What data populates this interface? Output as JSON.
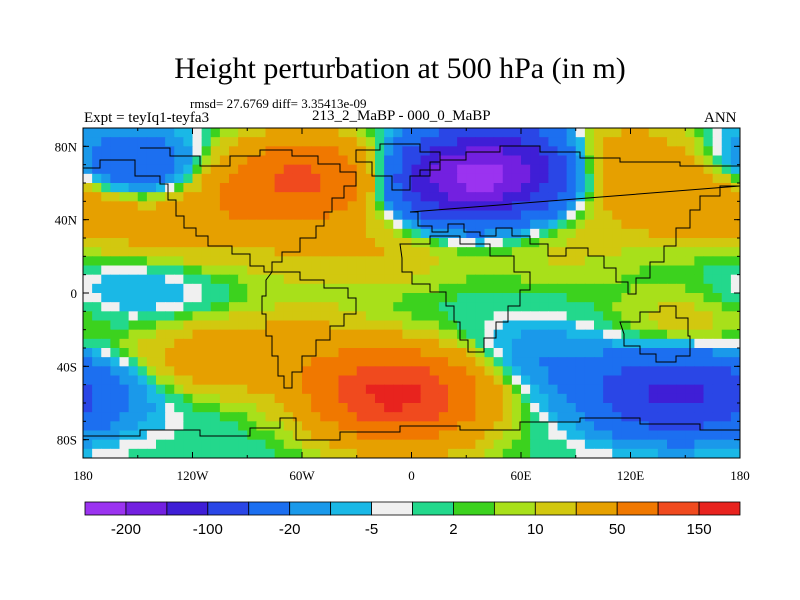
{
  "title": "Height perturbation at 500 hPa (in m)",
  "stats_text": "rmsd= 27.6769 diff= 3.35413e-09",
  "left_label": "Expt = teyIq1-teyfa3",
  "center_label": "213_2_MaBP - 000_0_MaBP",
  "right_label": "ANN",
  "axes": {
    "y_ticks": [
      "80N",
      "40N",
      "0",
      "40S",
      "80S"
    ],
    "x_ticks": [
      "180",
      "120W",
      "60W",
      "0",
      "60E",
      "120E",
      "180"
    ]
  },
  "colorbar": {
    "colors": [
      "#9b33f0",
      "#7320e0",
      "#3f1ed6",
      "#2a46e6",
      "#1c6ff0",
      "#1a99ea",
      "#1ab8e6",
      "#f0f0f0",
      "#23d88c",
      "#3cd21e",
      "#a8e01a",
      "#d2c80f",
      "#e6a000",
      "#f07800",
      "#f04a1e",
      "#e8231e"
    ],
    "labels": [
      "-200",
      "-100",
      "-20",
      "-5",
      "2",
      "10",
      "50",
      "150"
    ]
  },
  "chart_data": {
    "type": "heatmap",
    "title": "Height perturbation at 500 hPa (in m)",
    "variable": "500 hPa height perturbation",
    "units": "m",
    "x_range": [
      -180,
      180
    ],
    "y_range": [
      -90,
      90
    ],
    "contour_levels": [
      -200,
      -150,
      -100,
      -50,
      -20,
      -10,
      -5,
      -2,
      2,
      5,
      10,
      20,
      50,
      100,
      150,
      200
    ],
    "features": [
      {
        "lon": 28,
        "lat": 60,
        "value": -140
      },
      {
        "lon": 50,
        "lat": 70,
        "value": -120
      },
      {
        "lon": 110,
        "lat": 72,
        "value": 45
      },
      {
        "lon": -155,
        "lat": 65,
        "value": -60
      },
      {
        "lon": -72,
        "lat": 60,
        "value": 70
      },
      {
        "lon": -45,
        "lat": 63,
        "value": 55
      },
      {
        "lon": -175,
        "lat": 50,
        "value": 45
      },
      {
        "lon": -120,
        "lat": 38,
        "value": 30
      },
      {
        "lon": 140,
        "lat": 50,
        "value": 25
      },
      {
        "lon": 80,
        "lat": 25,
        "value": 12
      },
      {
        "lon": -10,
        "lat": 25,
        "value": 18
      },
      {
        "lon": -60,
        "lat": 20,
        "value": 10
      },
      {
        "lon": 150,
        "lat": -20,
        "value": 18
      },
      {
        "lon": -8,
        "lat": -55,
        "value": 165
      },
      {
        "lon": -120,
        "lat": -38,
        "value": 35
      },
      {
        "lon": -60,
        "lat": -30,
        "value": 25
      },
      {
        "lon": 70,
        "lat": -38,
        "value": -20
      },
      {
        "lon": 145,
        "lat": -55,
        "value": -110
      },
      {
        "lon": -150,
        "lat": -50,
        "value": -18
      },
      {
        "lon": -150,
        "lat": 0,
        "value": -12
      },
      {
        "lon": 0,
        "lat": -82,
        "value": 15
      }
    ]
  }
}
